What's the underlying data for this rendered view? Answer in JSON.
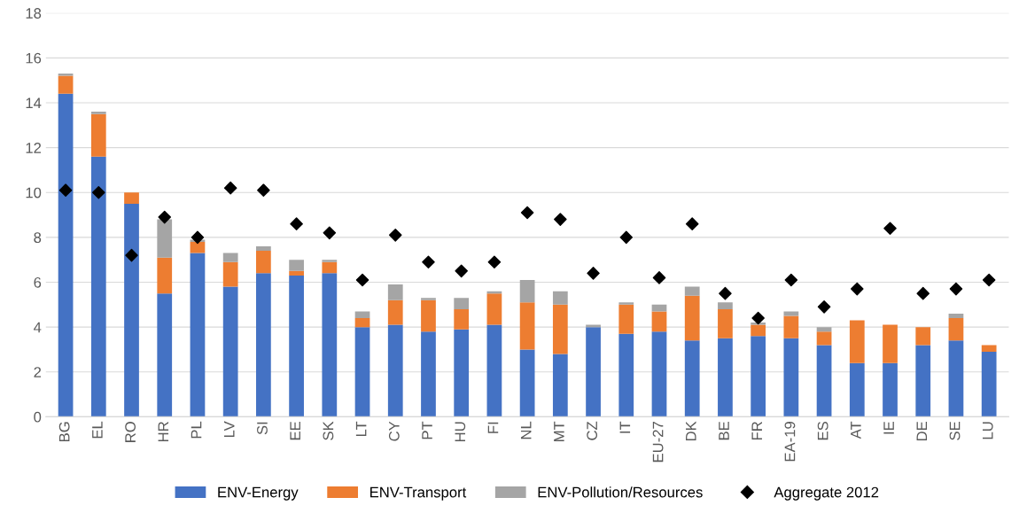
{
  "chart_data": {
    "type": "bar",
    "stacked": true,
    "categories": [
      "BG",
      "EL",
      "RO",
      "HR",
      "PL",
      "LV",
      "SI",
      "EE",
      "SK",
      "LT",
      "CY",
      "PT",
      "HU",
      "FI",
      "NL",
      "MT",
      "CZ",
      "IT",
      "EU-27",
      "DK",
      "BE",
      "FR",
      "EA-19",
      "ES",
      "AT",
      "IE",
      "DE",
      "SE",
      "LU"
    ],
    "series": [
      {
        "name": "ENV-Energy",
        "color": "#4472c4",
        "values": [
          14.4,
          11.6,
          9.5,
          5.5,
          7.3,
          5.8,
          6.4,
          6.3,
          6.4,
          4.0,
          4.1,
          3.8,
          3.9,
          4.1,
          3.0,
          2.8,
          4.0,
          3.7,
          3.8,
          3.4,
          3.5,
          3.6,
          3.5,
          3.2,
          2.4,
          2.4,
          3.2,
          3.4,
          2.9
        ]
      },
      {
        "name": "ENV-Transport",
        "color": "#ed7d31",
        "values": [
          0.8,
          1.9,
          0.5,
          1.6,
          0.5,
          1.1,
          1.0,
          0.2,
          0.5,
          0.4,
          1.1,
          1.4,
          0.9,
          1.4,
          2.1,
          2.2,
          0.0,
          1.3,
          0.9,
          2.0,
          1.3,
          0.5,
          1.0,
          0.6,
          1.9,
          1.7,
          0.8,
          1.0,
          0.3
        ]
      },
      {
        "name": "ENV-Pollution/Resources",
        "color": "#a5a5a5",
        "values": [
          0.1,
          0.1,
          0.0,
          1.7,
          0.1,
          0.4,
          0.2,
          0.5,
          0.1,
          0.3,
          0.7,
          0.1,
          0.5,
          0.1,
          1.0,
          0.6,
          0.1,
          0.1,
          0.3,
          0.4,
          0.3,
          0.1,
          0.2,
          0.2,
          0.0,
          0.0,
          0.0,
          0.2,
          0.0
        ]
      },
      {
        "name": "Aggregate 2012",
        "type": "scatter",
        "marker": "diamond",
        "color": "#000000",
        "values": [
          10.1,
          10.0,
          7.2,
          8.9,
          8.0,
          10.2,
          10.1,
          8.6,
          8.2,
          6.1,
          8.1,
          6.9,
          6.5,
          6.9,
          9.1,
          8.8,
          6.4,
          8.0,
          6.2,
          8.6,
          5.5,
          4.4,
          6.1,
          4.9,
          5.7,
          8.4,
          5.5,
          5.7,
          6.1
        ]
      }
    ],
    "ylim": [
      0,
      18
    ],
    "yticks": [
      0,
      2,
      4,
      6,
      8,
      10,
      12,
      14,
      16,
      18
    ],
    "grid": "y",
    "legend": "bottom"
  }
}
